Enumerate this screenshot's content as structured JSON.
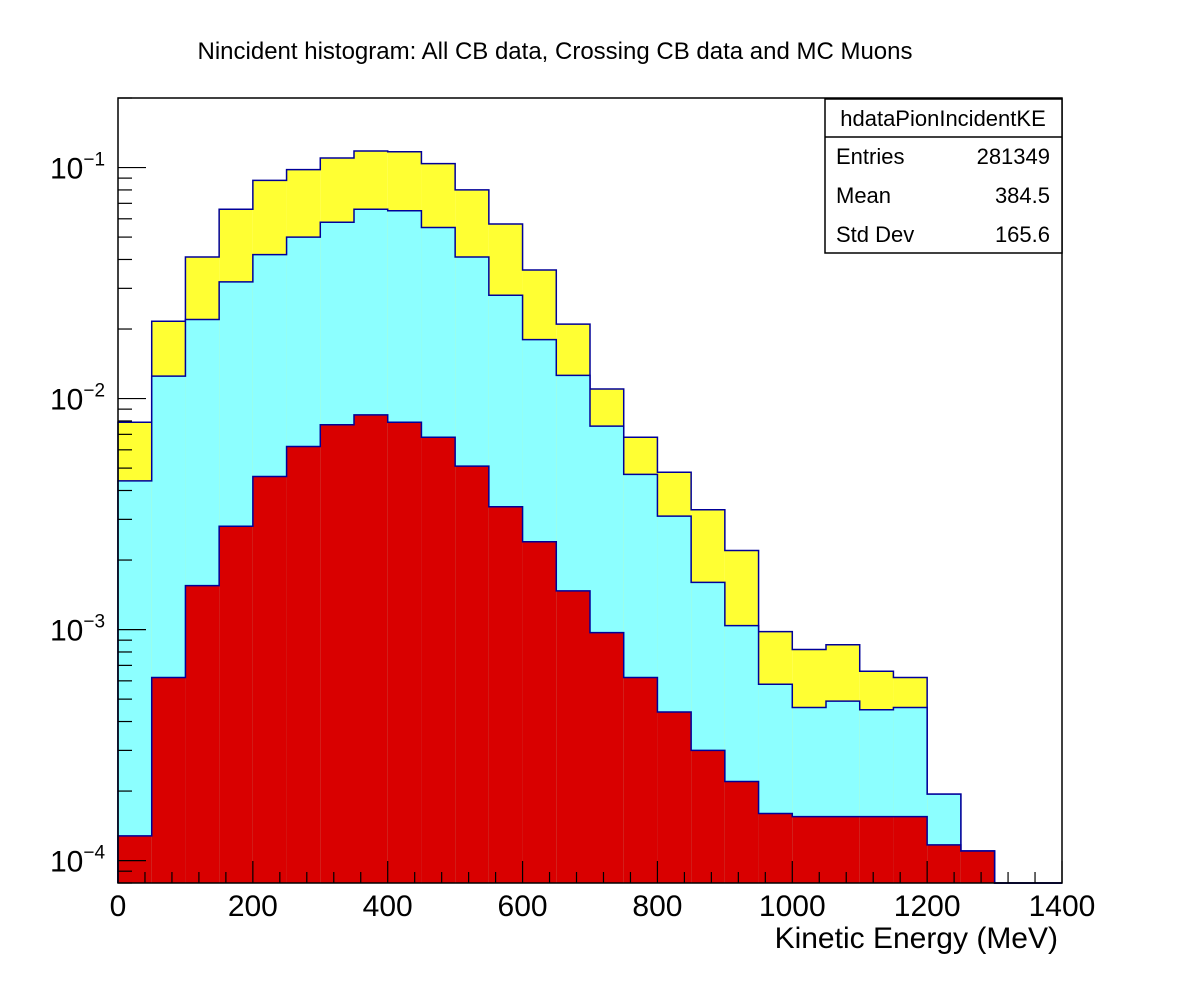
{
  "chart_data": {
    "type": "bar",
    "title": "Nincident histogram: All CB data, Crossing CB data and MC Muons",
    "xlabel": "Kinetic Energy (MeV)",
    "ylabel": "",
    "xlim": [
      0,
      1400
    ],
    "ylim": [
      8e-05,
      0.2
    ],
    "yscale": "log",
    "grid": false,
    "x_tick_values": [
      0,
      200,
      400,
      600,
      800,
      1000,
      1200,
      1400
    ],
    "x_tick_labels": [
      "0",
      "200",
      "400",
      "600",
      "800",
      "1000",
      "1200",
      "1400"
    ],
    "y_tick_values": [
      0.1,
      0.01,
      0.001,
      0.0001
    ],
    "y_tick_labels": [
      {
        "base": "10",
        "exp": "−1"
      },
      {
        "base": "10",
        "exp": "−2"
      },
      {
        "base": "10",
        "exp": "−3"
      },
      {
        "base": "10",
        "exp": "−4"
      }
    ],
    "bin_edges": [
      0,
      50,
      100,
      150,
      200,
      250,
      300,
      350,
      400,
      450,
      500,
      550,
      600,
      650,
      700,
      750,
      800,
      850,
      900,
      950,
      1000,
      1050,
      1100,
      1150,
      1200,
      1250,
      1300,
      1350,
      1400
    ],
    "series": [
      {
        "color": "#ffff33",
        "values": [
          0.0079,
          0.0216,
          0.041,
          0.066,
          0.088,
          0.098,
          0.11,
          0.118,
          0.117,
          0.104,
          0.08,
          0.057,
          0.036,
          0.021,
          0.011,
          0.0068,
          0.0048,
          0.0033,
          0.0022,
          0.00098,
          0.00082,
          0.00086,
          0.00066,
          0.00062,
          0.000194,
          0.00011,
          8e-05,
          8e-05
        ]
      },
      {
        "color": "#8cffff",
        "values": [
          0.0044,
          0.0125,
          0.022,
          0.032,
          0.042,
          0.05,
          0.058,
          0.066,
          0.065,
          0.055,
          0.041,
          0.028,
          0.018,
          0.0126,
          0.0076,
          0.0047,
          0.0031,
          0.0016,
          0.00104,
          0.00058,
          0.00046,
          0.00049,
          0.00045,
          0.00046,
          0.000194,
          0.00011,
          8e-05,
          8e-05
        ]
      },
      {
        "color": "#d90000",
        "values": [
          0.000128,
          0.00062,
          0.00155,
          0.0028,
          0.0046,
          0.0062,
          0.0077,
          0.0085,
          0.0079,
          0.0068,
          0.0051,
          0.0034,
          0.0024,
          0.00147,
          0.00097,
          0.00062,
          0.00044,
          0.0003,
          0.00022,
          0.00016,
          0.000155,
          0.000155,
          0.000155,
          0.000155,
          0.000117,
          0.00011,
          8e-05,
          8e-05
        ]
      }
    ],
    "stats_box": {
      "title": "hdataPionIncidentKE",
      "rows": [
        {
          "label": "Entries",
          "value": "281349"
        },
        {
          "label": "Mean",
          "value": "384.5"
        },
        {
          "label": "Std Dev",
          "value": "165.6"
        }
      ]
    },
    "colors": {
      "outline": "#000099",
      "axis": "#000000"
    }
  }
}
